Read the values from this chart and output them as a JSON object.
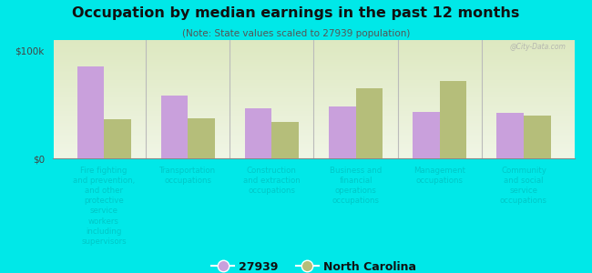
{
  "title": "Occupation by median earnings in the past 12 months",
  "subtitle": "(Note: State values scaled to 27939 population)",
  "background_color": "#00e8e8",
  "categories": [
    "Fire fighting\nand prevention,\nand other\nprotective\nservice\nworkers\nincluding\nsupervisors",
    "Transportation\noccupations",
    "Construction\nand extraction\noccupations",
    "Business and\nfinancial\noperations\noccupations",
    "Management\noccupations",
    "Community\nand social\nservice\noccupations"
  ],
  "values_27939": [
    85000,
    58000,
    46000,
    48000,
    43000,
    42000
  ],
  "values_nc": [
    36000,
    37000,
    34000,
    65000,
    72000,
    40000
  ],
  "color_27939": "#c9a0dc",
  "color_nc": "#b5be7a",
  "ylabel_100k": "$100k",
  "ylabel_0": "$0",
  "legend_27939": "27939",
  "legend_nc": "North Carolina",
  "ylim": [
    0,
    110000
  ],
  "ytick_vals": [
    0,
    100000
  ],
  "bar_width": 0.32,
  "watermark": "@City-Data.com",
  "plot_bg_color_top": "#dde8c0",
  "plot_bg_color_bot": "#f0f5e5",
  "label_color": "#00c8c8",
  "title_color": "#111111",
  "subtitle_color": "#555555"
}
